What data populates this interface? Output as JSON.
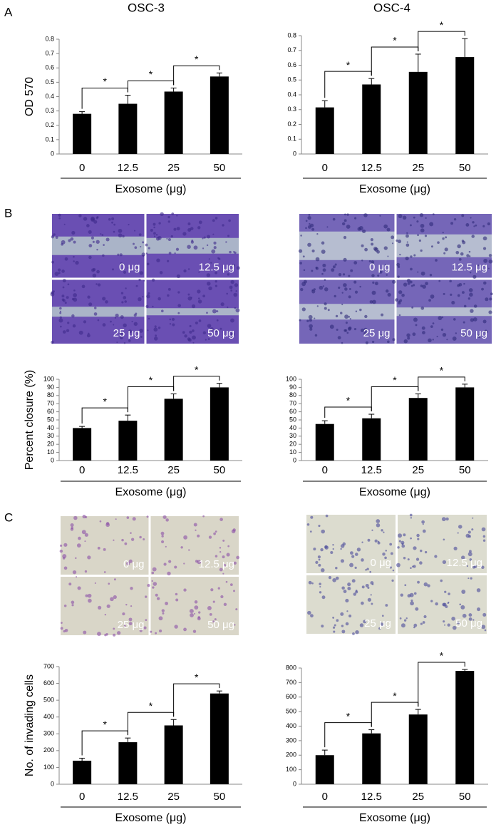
{
  "panel_labels": [
    "A",
    "B",
    "C"
  ],
  "column_titles": [
    "OSC-3",
    "OSC-4"
  ],
  "micrographs": [
    {
      "labels": [
        "0 μg",
        "12.5 μg",
        "25 μg",
        "50 μg"
      ]
    },
    {
      "labels": [
        "0 μg",
        "12.5 μg",
        "25 μg",
        "50 μg"
      ]
    },
    {
      "labels": [
        "0 μg",
        "12.5 μg",
        "25 μg",
        "50 μg"
      ]
    },
    {
      "labels": [
        "0 μg",
        "12.5 μg",
        "25 μg",
        "50 μg"
      ]
    }
  ],
  "chart_data": [
    {
      "type": "bar",
      "ylabel": "OD 570",
      "xlabel": "Exosome (μg)",
      "categories": [
        "0",
        "12.5",
        "25",
        "50"
      ],
      "values": [
        0.28,
        0.35,
        0.435,
        0.54
      ],
      "errors": [
        0.015,
        0.06,
        0.025,
        0.025
      ],
      "color": "#000000",
      "ylim": [
        0,
        0.8
      ],
      "yticks": [
        0,
        0.1,
        0.2,
        0.3,
        0.4,
        0.5,
        0.6,
        0.7,
        0.8
      ],
      "significance_labels": [
        "*",
        "*",
        "*"
      ]
    },
    {
      "type": "bar",
      "xlabel": "Exosome (μg)",
      "categories": [
        "0",
        "12.5",
        "25",
        "50"
      ],
      "values": [
        0.315,
        0.47,
        0.555,
        0.655
      ],
      "errors": [
        0.045,
        0.04,
        0.12,
        0.125
      ],
      "color": "#000000",
      "ylim": [
        0,
        0.8
      ],
      "yticks": [
        0,
        0.1,
        0.2,
        0.3,
        0.4,
        0.5,
        0.6,
        0.7,
        0.8
      ],
      "significance_labels": [
        "*",
        "*",
        "*"
      ]
    },
    {
      "type": "bar",
      "ylabel": "Percent closure (%)",
      "xlabel": "Exosome (μg)",
      "categories": [
        "0",
        "12.5",
        "25",
        "50"
      ],
      "values": [
        40,
        49,
        76,
        90
      ],
      "errors": [
        2,
        7,
        6,
        5
      ],
      "color": "#000000",
      "ylim": [
        0,
        100
      ],
      "yticks": [
        0,
        10,
        20,
        30,
        40,
        50,
        60,
        70,
        80,
        90,
        100
      ],
      "significance_labels": [
        "*",
        "*",
        "*"
      ]
    },
    {
      "type": "bar",
      "xlabel": "Exosome (μg)",
      "categories": [
        "0",
        "12.5",
        "25",
        "50"
      ],
      "values": [
        45,
        52,
        77,
        90
      ],
      "errors": [
        4,
        5,
        5,
        4
      ],
      "color": "#000000",
      "ylim": [
        0,
        100
      ],
      "yticks": [
        0,
        10,
        20,
        30,
        40,
        50,
        60,
        70,
        80,
        90,
        100
      ],
      "significance_labels": [
        "*",
        "*",
        "*"
      ]
    },
    {
      "type": "bar",
      "ylabel": "No. of invading cells",
      "xlabel": "Exosome (μg)",
      "categories": [
        "0",
        "12.5",
        "25",
        "50"
      ],
      "values": [
        140,
        250,
        350,
        540
      ],
      "errors": [
        15,
        25,
        35,
        15
      ],
      "color": "#000000",
      "ylim": [
        0,
        700
      ],
      "yticks": [
        0,
        100,
        200,
        300,
        400,
        500,
        600,
        700
      ],
      "significance_labels": [
        "*",
        "*",
        "*"
      ]
    },
    {
      "type": "bar",
      "xlabel": "Exosome (μg)",
      "categories": [
        "0",
        "12.5",
        "25",
        "50"
      ],
      "values": [
        200,
        350,
        480,
        780
      ],
      "errors": [
        35,
        25,
        35,
        10
      ],
      "color": "#000000",
      "ylim": [
        0,
        800
      ],
      "yticks": [
        0,
        100,
        200,
        300,
        400,
        500,
        600,
        700,
        800
      ],
      "significance_labels": [
        "*",
        "*",
        "*"
      ]
    }
  ]
}
